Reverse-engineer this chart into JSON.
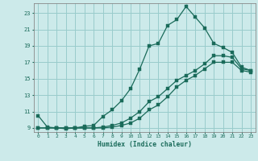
{
  "xlabel": "Humidex (Indice chaleur)",
  "bg_color": "#cceaea",
  "grid_color": "#99cccc",
  "line_color": "#1a6b5a",
  "xlim": [
    -0.5,
    23.5
  ],
  "ylim": [
    8.5,
    24.2
  ],
  "xticks": [
    0,
    1,
    2,
    3,
    4,
    5,
    6,
    7,
    8,
    9,
    10,
    11,
    12,
    13,
    14,
    15,
    16,
    17,
    18,
    19,
    20,
    21,
    22,
    23
  ],
  "yticks": [
    9,
    11,
    13,
    15,
    17,
    19,
    21,
    23
  ],
  "line1_x": [
    0,
    1,
    2,
    3,
    4,
    5,
    6,
    7,
    8,
    9,
    10,
    11,
    12,
    13,
    14,
    15,
    16,
    17,
    18,
    19,
    20,
    21,
    22,
    23
  ],
  "line1_y": [
    10.5,
    9.1,
    9.0,
    8.9,
    9.0,
    9.2,
    9.3,
    10.4,
    11.2,
    12.3,
    13.8,
    16.2,
    19.0,
    19.3,
    21.5,
    22.2,
    23.8,
    22.5,
    21.2,
    19.3,
    18.8,
    18.2,
    16.4,
    16.0
  ],
  "line2_x": [
    0,
    1,
    2,
    3,
    4,
    5,
    6,
    7,
    8,
    9,
    10,
    11,
    12,
    13,
    14,
    15,
    16,
    17,
    18,
    19,
    20,
    21,
    22,
    23
  ],
  "line2_y": [
    9.0,
    9.0,
    9.0,
    9.0,
    9.0,
    9.0,
    9.0,
    9.1,
    9.3,
    9.6,
    10.2,
    11.0,
    12.2,
    12.8,
    13.8,
    14.8,
    15.4,
    16.0,
    16.8,
    17.8,
    17.8,
    17.6,
    16.2,
    16.0
  ],
  "line3_x": [
    0,
    1,
    2,
    3,
    4,
    5,
    6,
    7,
    8,
    9,
    10,
    11,
    12,
    13,
    14,
    15,
    16,
    17,
    18,
    19,
    20,
    21,
    22,
    23
  ],
  "line3_y": [
    9.0,
    9.0,
    9.0,
    9.0,
    9.0,
    9.0,
    9.0,
    9.0,
    9.1,
    9.3,
    9.6,
    10.2,
    11.2,
    11.8,
    12.8,
    14.0,
    14.8,
    15.4,
    16.2,
    17.0,
    17.0,
    17.0,
    16.0,
    15.8
  ]
}
